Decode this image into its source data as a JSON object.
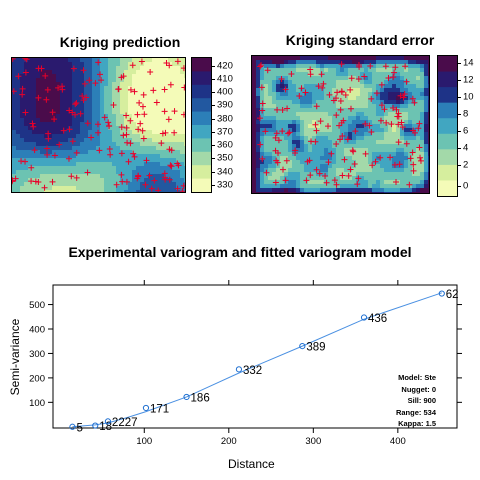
{
  "panels": {
    "prediction": {
      "title": "Kriging prediction",
      "legend_ticks": [
        "420",
        "410",
        "400",
        "390",
        "380",
        "370",
        "360",
        "350",
        "340",
        "330"
      ],
      "legend_colors": [
        "#4a0c4b",
        "#2a1a6e",
        "#1e3387",
        "#2258a0",
        "#2c7fb8",
        "#41a6c1",
        "#6cc3b2",
        "#a3d9a9",
        "#d6ee9e",
        "#f4fbb8"
      ]
    },
    "std_error": {
      "title": "Kriging standard error",
      "legend_ticks": [
        "14",
        "12",
        "10",
        "8",
        "6",
        "4",
        "2",
        "0"
      ],
      "legend_colors": [
        "#4a0c4b",
        "#2a1a6e",
        "#1e3387",
        "#2c7fb8",
        "#41a6c1",
        "#6cc3b2",
        "#a3d9a9",
        "#d6ee9e",
        "#f4fbb8"
      ]
    }
  },
  "variogram": {
    "title": "Experimental variogram and fitted variogram model",
    "model_info": [
      "Model: Ste",
      "Nugget: 0",
      "Sill: 900",
      "Range: 534",
      "Kappa: 1.5"
    ],
    "point_color": "#1f6fd0",
    "line_color": "#4a90e2"
  },
  "chart_data": {
    "type": "scatter",
    "title": "Experimental variogram and fitted variogram model",
    "xlabel": "Distance",
    "ylabel": "Semi-variance",
    "xlim": [
      -8,
      470
    ],
    "ylim": [
      -5,
      580
    ],
    "x_ticks": [
      100,
      200,
      300,
      400
    ],
    "y_ticks": [
      100,
      200,
      300,
      400,
      500
    ],
    "points": [
      {
        "x": 15,
        "y": 0,
        "label": "5"
      },
      {
        "x": 42,
        "y": 5,
        "label": "18"
      },
      {
        "x": 57,
        "y": 22,
        "label": "2227"
      },
      {
        "x": 102,
        "y": 77,
        "label": "171"
      },
      {
        "x": 150,
        "y": 122,
        "label": "186"
      },
      {
        "x": 212,
        "y": 235,
        "label": "332"
      },
      {
        "x": 287,
        "y": 330,
        "label": "389"
      },
      {
        "x": 360,
        "y": 447,
        "label": "436"
      },
      {
        "x": 452,
        "y": 545,
        "label": "62"
      }
    ],
    "fitted_line": [
      [
        15,
        0
      ],
      [
        42,
        8
      ],
      [
        57,
        16
      ],
      [
        80,
        38
      ],
      [
        102,
        62
      ],
      [
        150,
        122
      ],
      [
        212,
        220
      ],
      [
        287,
        330
      ],
      [
        360,
        440
      ],
      [
        452,
        548
      ]
    ]
  }
}
